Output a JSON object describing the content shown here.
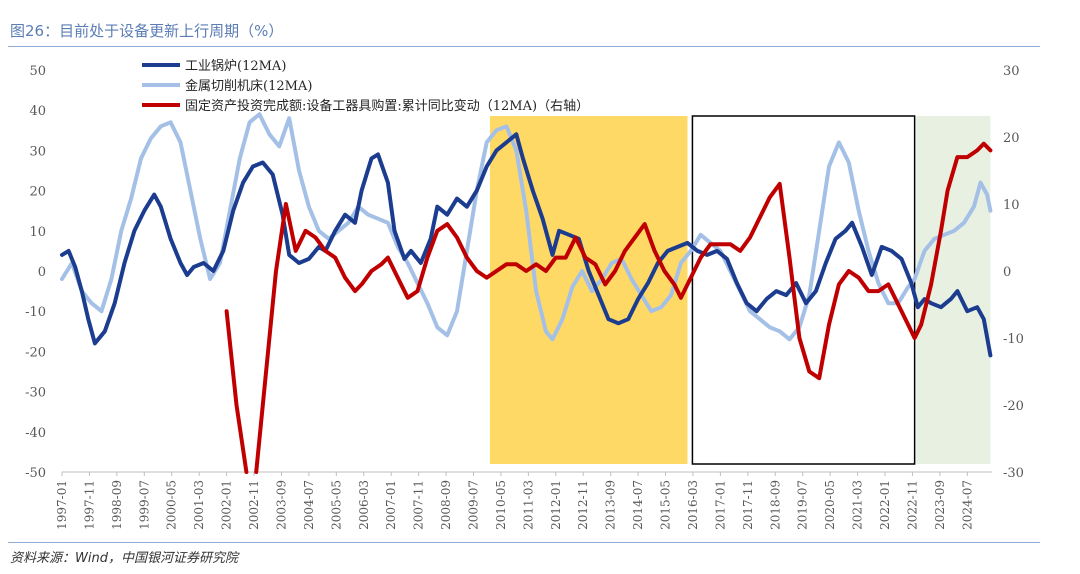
{
  "header": {
    "title": "图26：目前处于设备更新上行周期（%）"
  },
  "footer": {
    "source": "资料来源：Wind，中国银河证券研究院"
  },
  "chart_data": {
    "type": "line",
    "x_ticks": [
      "1997-01",
      "1997-11",
      "1998-09",
      "1999-07",
      "2000-05",
      "2001-03",
      "2002-01",
      "2002-11",
      "2003-09",
      "2004-07",
      "2005-05",
      "2006-03",
      "2007-01",
      "2007-11",
      "2008-09",
      "2009-07",
      "2010-05",
      "2011-03",
      "2012-01",
      "2012-11",
      "2013-09",
      "2014-07",
      "2015-05",
      "2016-03",
      "2017-01",
      "2017-11",
      "2018-09",
      "2019-07",
      "2020-05",
      "2021-03",
      "2022-01",
      "2022-11",
      "2023-09",
      "2024-07"
    ],
    "y_left": {
      "min": -50,
      "max": 50,
      "ticks": [
        50,
        40,
        30,
        20,
        10,
        0,
        -10,
        -20,
        -30,
        -40,
        -50
      ]
    },
    "y_right": {
      "min": -30,
      "max": 30,
      "ticks": [
        30,
        20,
        10,
        0,
        -10,
        -20,
        -30
      ]
    },
    "legend_position": "top-left",
    "grid": false,
    "series": [
      {
        "name": "工业锅炉(12MA)",
        "axis": "left",
        "color": "#1c3c8f",
        "points": [
          [
            1997.0,
            4
          ],
          [
            1997.2,
            5
          ],
          [
            1997.4,
            1
          ],
          [
            1997.6,
            -5
          ],
          [
            1997.8,
            -12
          ],
          [
            1998.0,
            -18
          ],
          [
            1998.3,
            -15
          ],
          [
            1998.6,
            -8
          ],
          [
            1998.9,
            2
          ],
          [
            1999.2,
            10
          ],
          [
            1999.5,
            15
          ],
          [
            1999.8,
            19
          ],
          [
            2000.0,
            16
          ],
          [
            2000.3,
            8
          ],
          [
            2000.6,
            2
          ],
          [
            2000.8,
            -1
          ],
          [
            2001.0,
            1
          ],
          [
            2001.3,
            2
          ],
          [
            2001.6,
            0
          ],
          [
            2001.9,
            5
          ],
          [
            2002.2,
            15
          ],
          [
            2002.5,
            22
          ],
          [
            2002.8,
            26
          ],
          [
            2003.1,
            27
          ],
          [
            2003.4,
            24
          ],
          [
            2003.7,
            14
          ],
          [
            2003.9,
            4
          ],
          [
            2004.2,
            2
          ],
          [
            2004.5,
            3
          ],
          [
            2004.8,
            6
          ],
          [
            2005.0,
            5
          ],
          [
            2005.3,
            10
          ],
          [
            2005.6,
            14
          ],
          [
            2005.9,
            12
          ],
          [
            2006.1,
            20
          ],
          [
            2006.4,
            28
          ],
          [
            2006.6,
            29
          ],
          [
            2006.9,
            22
          ],
          [
            2007.1,
            10
          ],
          [
            2007.4,
            3
          ],
          [
            2007.6,
            5
          ],
          [
            2007.9,
            2
          ],
          [
            2008.2,
            8
          ],
          [
            2008.4,
            16
          ],
          [
            2008.7,
            14
          ],
          [
            2009.0,
            18
          ],
          [
            2009.3,
            16
          ],
          [
            2009.6,
            20
          ],
          [
            2009.9,
            26
          ],
          [
            2010.2,
            30
          ],
          [
            2010.5,
            32
          ],
          [
            2010.8,
            34
          ],
          [
            2011.0,
            28
          ],
          [
            2011.3,
            20
          ],
          [
            2011.6,
            13
          ],
          [
            2011.9,
            4
          ],
          [
            2012.1,
            10
          ],
          [
            2012.4,
            9
          ],
          [
            2012.7,
            8
          ],
          [
            2013.0,
            0
          ],
          [
            2013.3,
            -6
          ],
          [
            2013.6,
            -12
          ],
          [
            2013.9,
            -13
          ],
          [
            2014.2,
            -12
          ],
          [
            2014.5,
            -7
          ],
          [
            2014.8,
            -3
          ],
          [
            2015.1,
            2
          ],
          [
            2015.4,
            5
          ],
          [
            2015.7,
            6
          ],
          [
            2016.0,
            7
          ],
          [
            2016.3,
            5
          ],
          [
            2016.6,
            4
          ],
          [
            2016.9,
            5
          ],
          [
            2017.2,
            3
          ],
          [
            2017.5,
            -3
          ],
          [
            2017.8,
            -8
          ],
          [
            2018.1,
            -10
          ],
          [
            2018.4,
            -7
          ],
          [
            2018.7,
            -5
          ],
          [
            2019.0,
            -6
          ],
          [
            2019.3,
            -3
          ],
          [
            2019.6,
            -8
          ],
          [
            2019.9,
            -5
          ],
          [
            2020.2,
            2
          ],
          [
            2020.5,
            8
          ],
          [
            2020.8,
            10
          ],
          [
            2021.0,
            12
          ],
          [
            2021.3,
            6
          ],
          [
            2021.6,
            -1
          ],
          [
            2021.9,
            6
          ],
          [
            2022.2,
            5
          ],
          [
            2022.5,
            3
          ],
          [
            2022.8,
            -3
          ],
          [
            2023.0,
            -9
          ],
          [
            2023.2,
            -7
          ],
          [
            2023.4,
            -8
          ],
          [
            2023.7,
            -9
          ],
          [
            2024.0,
            -7
          ],
          [
            2024.2,
            -5
          ],
          [
            2024.5,
            -10
          ],
          [
            2024.8,
            -9
          ],
          [
            2025.0,
            -12
          ],
          [
            2025.2,
            -21
          ]
        ]
      },
      {
        "name": "金属切削机床(12MA)",
        "axis": "left",
        "color": "#a4c0e6",
        "points": [
          [
            1997.0,
            -2
          ],
          [
            1997.3,
            2
          ],
          [
            1997.6,
            -5
          ],
          [
            1997.9,
            -8
          ],
          [
            1998.2,
            -10
          ],
          [
            1998.5,
            -2
          ],
          [
            1998.8,
            10
          ],
          [
            1999.1,
            18
          ],
          [
            1999.4,
            28
          ],
          [
            1999.7,
            33
          ],
          [
            2000.0,
            36
          ],
          [
            2000.3,
            37
          ],
          [
            2000.6,
            32
          ],
          [
            2000.9,
            20
          ],
          [
            2001.2,
            8
          ],
          [
            2001.5,
            -2
          ],
          [
            2001.8,
            2
          ],
          [
            2002.1,
            15
          ],
          [
            2002.4,
            28
          ],
          [
            2002.7,
            37
          ],
          [
            2003.0,
            39
          ],
          [
            2003.3,
            34
          ],
          [
            2003.6,
            31
          ],
          [
            2003.9,
            38
          ],
          [
            2004.2,
            25
          ],
          [
            2004.5,
            16
          ],
          [
            2004.8,
            10
          ],
          [
            2005.1,
            8
          ],
          [
            2005.4,
            10
          ],
          [
            2005.7,
            12
          ],
          [
            2006.0,
            16
          ],
          [
            2006.3,
            14
          ],
          [
            2006.6,
            13
          ],
          [
            2006.9,
            12
          ],
          [
            2007.2,
            6
          ],
          [
            2007.5,
            2
          ],
          [
            2007.8,
            -3
          ],
          [
            2008.1,
            -8
          ],
          [
            2008.4,
            -14
          ],
          [
            2008.7,
            -16
          ],
          [
            2009.0,
            -10
          ],
          [
            2009.3,
            5
          ],
          [
            2009.6,
            20
          ],
          [
            2009.9,
            32
          ],
          [
            2010.2,
            35
          ],
          [
            2010.5,
            36
          ],
          [
            2010.8,
            30
          ],
          [
            2011.1,
            15
          ],
          [
            2011.4,
            -5
          ],
          [
            2011.7,
            -15
          ],
          [
            2011.9,
            -17
          ],
          [
            2012.2,
            -12
          ],
          [
            2012.5,
            -4
          ],
          [
            2012.8,
            0
          ],
          [
            2013.1,
            -5
          ],
          [
            2013.4,
            -2
          ],
          [
            2013.7,
            2
          ],
          [
            2014.0,
            3
          ],
          [
            2014.3,
            -2
          ],
          [
            2014.6,
            -6
          ],
          [
            2014.9,
            -10
          ],
          [
            2015.2,
            -9
          ],
          [
            2015.5,
            -6
          ],
          [
            2015.8,
            2
          ],
          [
            2016.1,
            5
          ],
          [
            2016.4,
            9
          ],
          [
            2016.7,
            7
          ],
          [
            2017.0,
            5
          ],
          [
            2017.3,
            0
          ],
          [
            2017.6,
            -5
          ],
          [
            2017.9,
            -10
          ],
          [
            2018.2,
            -12
          ],
          [
            2018.5,
            -14
          ],
          [
            2018.8,
            -15
          ],
          [
            2019.1,
            -17
          ],
          [
            2019.4,
            -14
          ],
          [
            2019.7,
            -6
          ],
          [
            2020.0,
            10
          ],
          [
            2020.3,
            26
          ],
          [
            2020.6,
            32
          ],
          [
            2020.9,
            27
          ],
          [
            2021.2,
            15
          ],
          [
            2021.5,
            5
          ],
          [
            2021.8,
            -3
          ],
          [
            2022.1,
            -8
          ],
          [
            2022.4,
            -8
          ],
          [
            2022.7,
            -4
          ],
          [
            2022.9,
            -2
          ],
          [
            2023.2,
            5
          ],
          [
            2023.5,
            8
          ],
          [
            2023.8,
            9
          ],
          [
            2024.1,
            10
          ],
          [
            2024.4,
            12
          ],
          [
            2024.7,
            16
          ],
          [
            2024.9,
            22
          ],
          [
            2025.1,
            19
          ],
          [
            2025.2,
            15
          ]
        ]
      },
      {
        "name": "固定资产投资完成额:设备工器具购置:累计同比变动（12MA)（右轴）",
        "axis": "right",
        "color": "#c00000",
        "segments": [
          [
            [
              2002.0,
              -6
            ],
            [
              2002.3,
              -20
            ],
            [
              2002.6,
              -30
            ]
          ],
          [
            [
              2002.9,
              -30
            ],
            [
              2003.2,
              -15
            ],
            [
              2003.5,
              0
            ],
            [
              2003.8,
              10
            ],
            [
              2004.1,
              3
            ],
            [
              2004.4,
              6
            ],
            [
              2004.7,
              5
            ],
            [
              2005.0,
              3
            ],
            [
              2005.3,
              2
            ],
            [
              2005.6,
              -1
            ],
            [
              2005.9,
              -3
            ],
            [
              2006.1,
              -2
            ],
            [
              2006.4,
              0
            ],
            [
              2006.7,
              1
            ],
            [
              2006.9,
              2
            ],
            [
              2007.2,
              -1
            ],
            [
              2007.5,
              -4
            ],
            [
              2007.8,
              -3
            ],
            [
              2008.1,
              2
            ],
            [
              2008.4,
              6
            ],
            [
              2008.7,
              7
            ],
            [
              2009.0,
              5
            ],
            [
              2009.3,
              2
            ],
            [
              2009.6,
              0
            ],
            [
              2009.9,
              -1
            ],
            [
              2010.2,
              0
            ],
            [
              2010.5,
              1
            ],
            [
              2010.8,
              1
            ],
            [
              2011.1,
              0
            ],
            [
              2011.4,
              1
            ],
            [
              2011.7,
              0
            ],
            [
              2012.0,
              2
            ],
            [
              2012.3,
              2
            ],
            [
              2012.6,
              5
            ],
            [
              2012.9,
              2
            ],
            [
              2013.2,
              1
            ],
            [
              2013.5,
              -2
            ],
            [
              2013.8,
              0
            ],
            [
              2014.1,
              3
            ],
            [
              2014.4,
              5
            ],
            [
              2014.7,
              7
            ],
            [
              2015.0,
              3
            ],
            [
              2015.3,
              0
            ],
            [
              2015.6,
              -2
            ],
            [
              2015.8,
              -4
            ],
            [
              2016.1,
              -1
            ],
            [
              2016.4,
              2
            ],
            [
              2016.7,
              4
            ],
            [
              2017.0,
              4
            ],
            [
              2017.3,
              4
            ],
            [
              2017.6,
              3
            ],
            [
              2017.9,
              5
            ],
            [
              2018.2,
              8
            ],
            [
              2018.5,
              11
            ],
            [
              2018.8,
              13
            ],
            [
              2019.1,
              2
            ],
            [
              2019.4,
              -10
            ],
            [
              2019.7,
              -15
            ],
            [
              2020.0,
              -16
            ],
            [
              2020.3,
              -8
            ],
            [
              2020.6,
              -2
            ],
            [
              2020.9,
              0
            ],
            [
              2021.2,
              -1
            ],
            [
              2021.5,
              -3
            ],
            [
              2021.8,
              -3
            ],
            [
              2022.1,
              -2
            ],
            [
              2022.4,
              -5
            ],
            [
              2022.7,
              -8
            ],
            [
              2022.9,
              -10
            ],
            [
              2023.1,
              -8
            ],
            [
              2023.4,
              -2
            ],
            [
              2023.7,
              6
            ],
            [
              2023.9,
              12
            ],
            [
              2024.2,
              17
            ],
            [
              2024.5,
              17
            ],
            [
              2024.8,
              18
            ],
            [
              2025.0,
              19
            ],
            [
              2025.2,
              18
            ]
          ]
        ]
      }
    ],
    "shaded_regions": [
      {
        "start": 2010.0,
        "end": 2016.0,
        "style": "filled",
        "color": "#ffd966"
      },
      {
        "start": 2016.15,
        "end": 2022.9,
        "style": "outlined",
        "color": "#000000"
      },
      {
        "start": 2022.95,
        "end": 2025.2,
        "style": "filled",
        "color": "#e8f1e1"
      }
    ]
  }
}
